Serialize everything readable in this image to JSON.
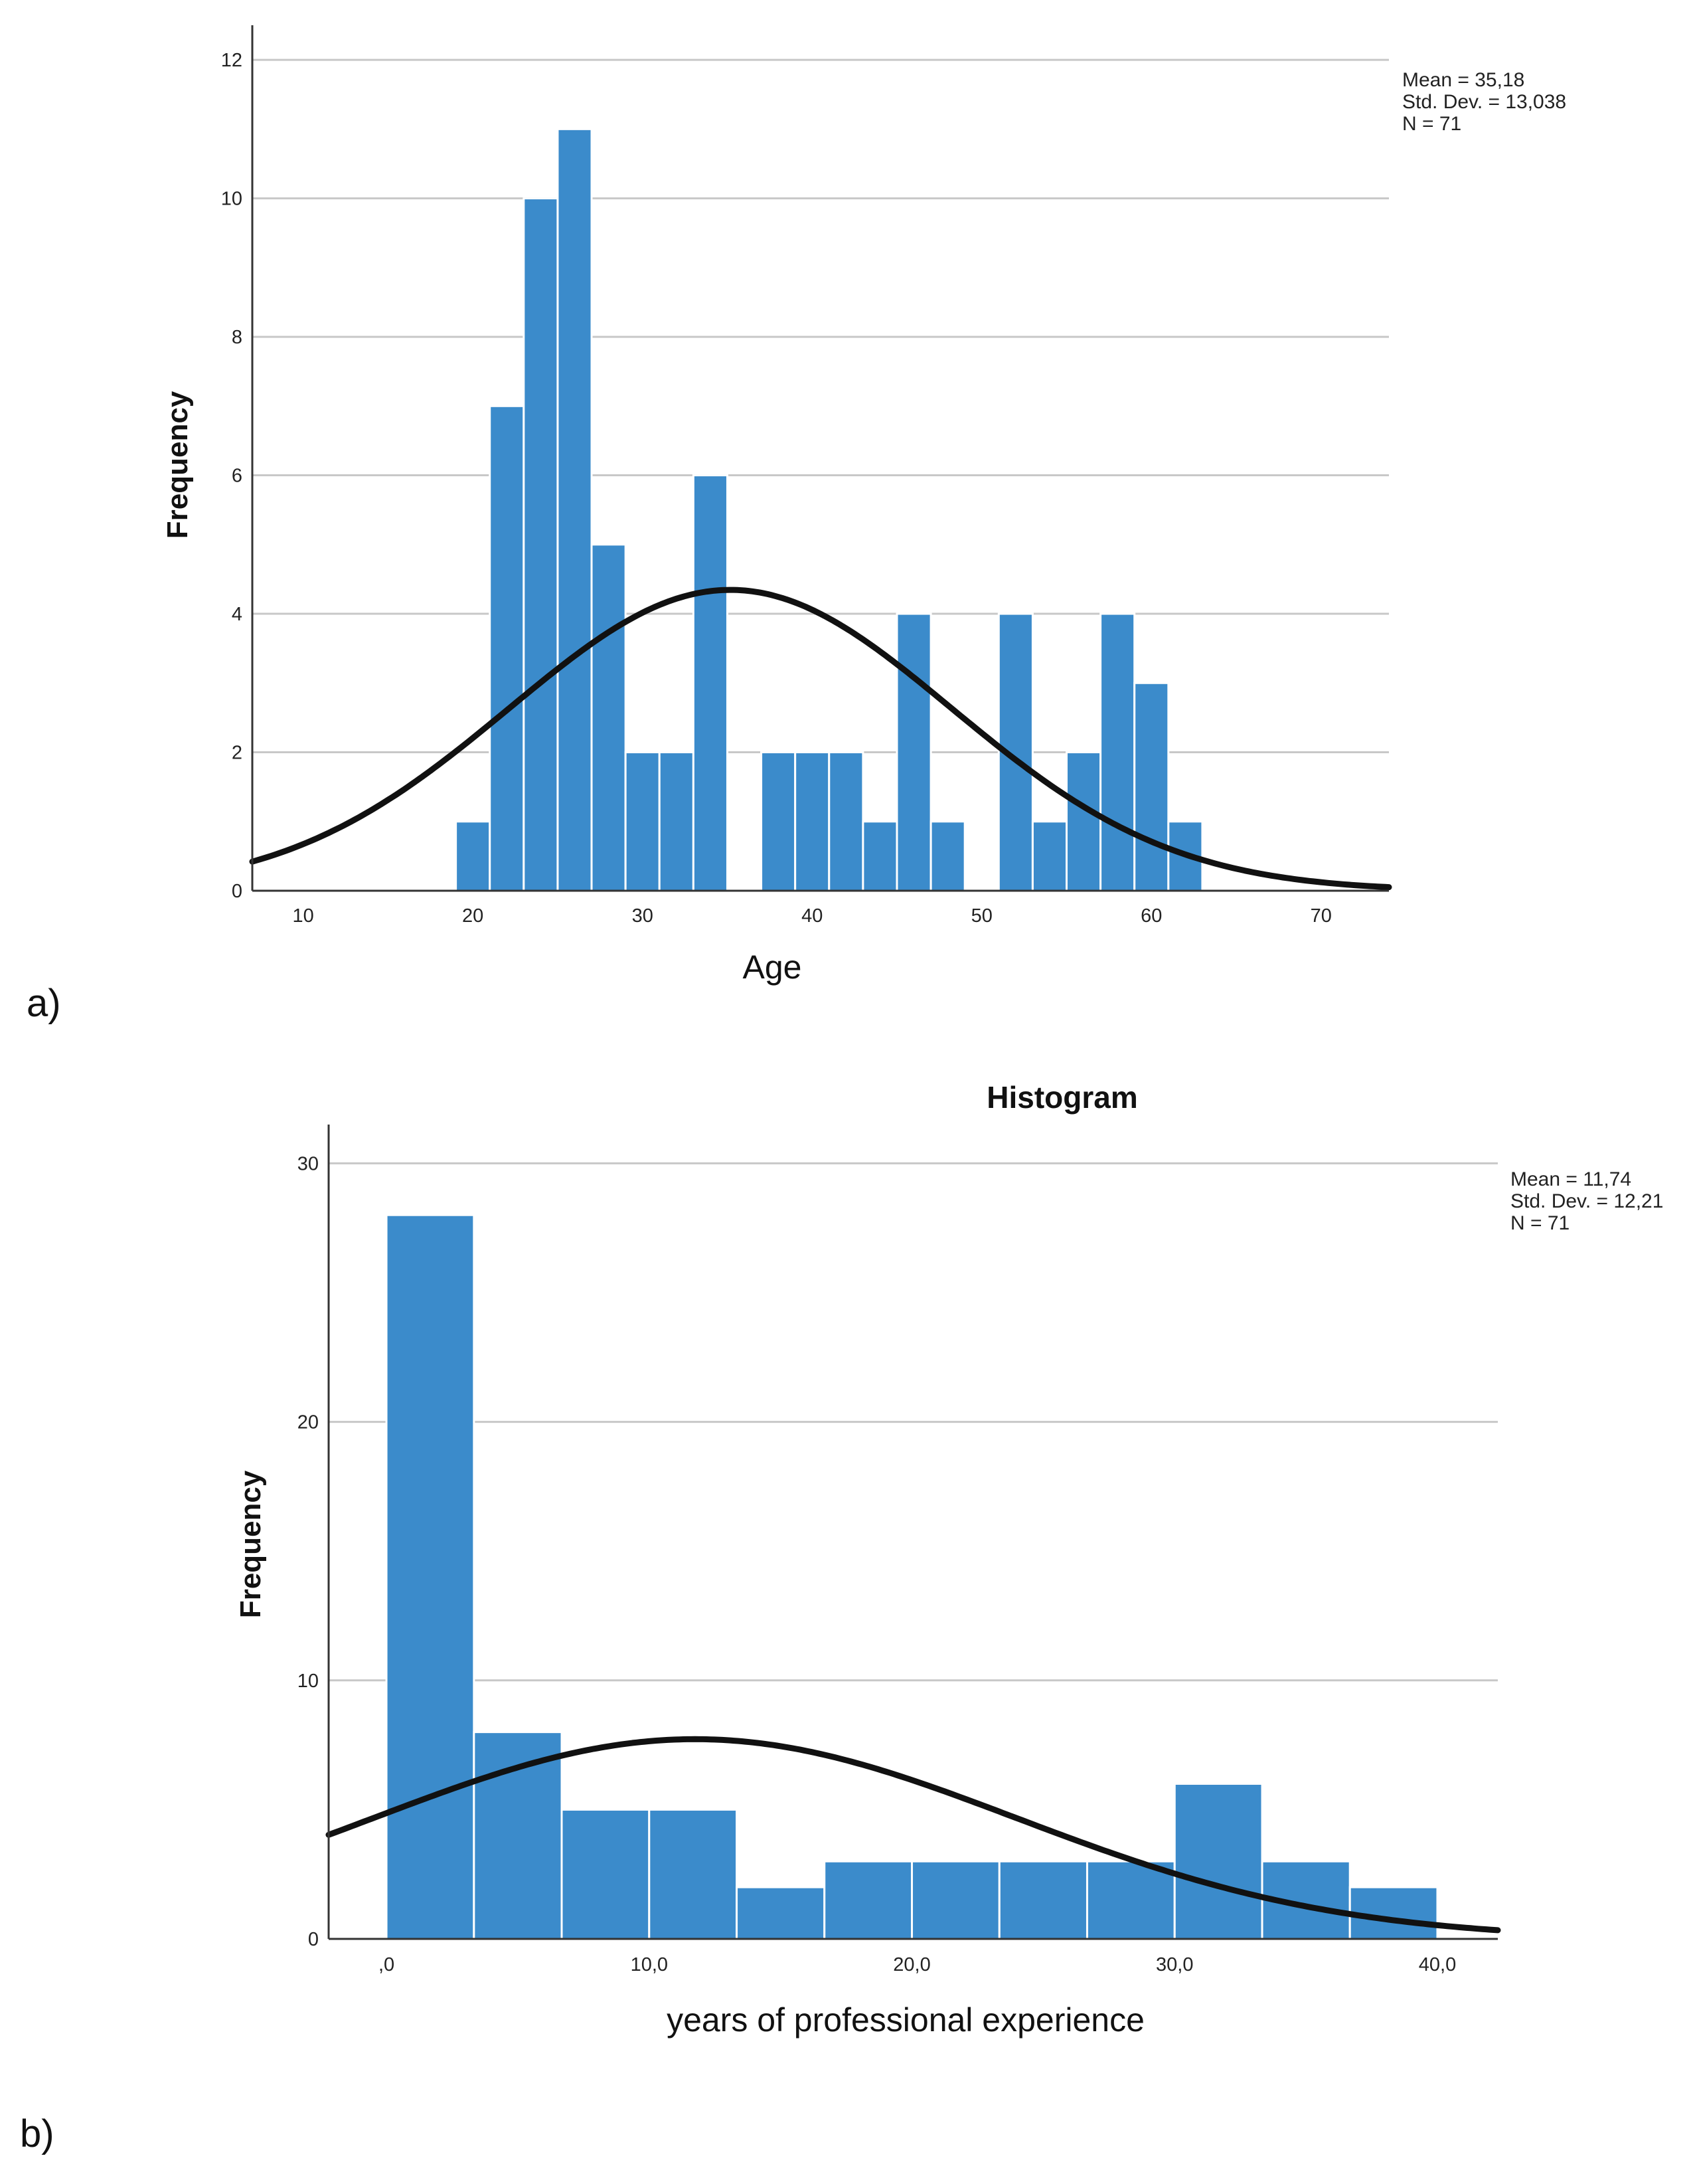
{
  "chart_data": [
    {
      "panel_label": "a)",
      "type": "histogram",
      "title": "",
      "xlabel": "Age",
      "ylabel": "Frequency",
      "xlim": [
        7,
        74
      ],
      "ylim": [
        0,
        12.5
      ],
      "x_ticks": [
        {
          "value": 10,
          "label": "10"
        },
        {
          "value": 20,
          "label": "20"
        },
        {
          "value": 30,
          "label": "30"
        },
        {
          "value": 40,
          "label": "40"
        },
        {
          "value": 50,
          "label": "50"
        },
        {
          "value": 60,
          "label": "60"
        },
        {
          "value": 70,
          "label": "70"
        }
      ],
      "y_ticks": [
        {
          "value": 0,
          "label": "0"
        },
        {
          "value": 2,
          "label": "2"
        },
        {
          "value": 4,
          "label": "4"
        },
        {
          "value": 6,
          "label": "6"
        },
        {
          "value": 8,
          "label": "8"
        },
        {
          "value": 10,
          "label": "10"
        },
        {
          "value": 12,
          "label": "12"
        }
      ],
      "grid": true,
      "bins": [
        {
          "x0": 19,
          "x1": 21,
          "count": 1
        },
        {
          "x0": 21,
          "x1": 23,
          "count": 7
        },
        {
          "x0": 23,
          "x1": 25,
          "count": 10
        },
        {
          "x0": 25,
          "x1": 27,
          "count": 11
        },
        {
          "x0": 27,
          "x1": 29,
          "count": 5
        },
        {
          "x0": 29,
          "x1": 31,
          "count": 2
        },
        {
          "x0": 31,
          "x1": 33,
          "count": 2
        },
        {
          "x0": 33,
          "x1": 35,
          "count": 6
        },
        {
          "x0": 35,
          "x1": 37,
          "count": 0
        },
        {
          "x0": 37,
          "x1": 39,
          "count": 2
        },
        {
          "x0": 39,
          "x1": 41,
          "count": 2
        },
        {
          "x0": 41,
          "x1": 43,
          "count": 2
        },
        {
          "x0": 43,
          "x1": 45,
          "count": 1
        },
        {
          "x0": 45,
          "x1": 47,
          "count": 4
        },
        {
          "x0": 47,
          "x1": 49,
          "count": 1
        },
        {
          "x0": 49,
          "x1": 51,
          "count": 0
        },
        {
          "x0": 51,
          "x1": 53,
          "count": 4
        },
        {
          "x0": 53,
          "x1": 55,
          "count": 1
        },
        {
          "x0": 55,
          "x1": 57,
          "count": 2
        },
        {
          "x0": 57,
          "x1": 59,
          "count": 4
        },
        {
          "x0": 59,
          "x1": 61,
          "count": 3
        },
        {
          "x0": 61,
          "x1": 63,
          "count": 1
        }
      ],
      "normal_curve": {
        "mean": 35.18,
        "sd": 13.038,
        "n": 71,
        "bin_width": 2
      },
      "stats_text": [
        "Mean = 35,18",
        "Std. Dev. = 13,038",
        "N = 71"
      ],
      "bar_color": "#3b8bcb"
    },
    {
      "panel_label": "b)",
      "type": "histogram",
      "title": "Histogram",
      "xlabel": "years of professional experience",
      "ylabel": "Frequency",
      "xlim": [
        -2.2,
        42.3
      ],
      "ylim": [
        0,
        31.5
      ],
      "x_ticks": [
        {
          "value": 0,
          "label": ",0"
        },
        {
          "value": 10,
          "label": "10,0"
        },
        {
          "value": 20,
          "label": "20,0"
        },
        {
          "value": 30,
          "label": "30,0"
        },
        {
          "value": 40,
          "label": "40,0"
        }
      ],
      "y_ticks": [
        {
          "value": 0,
          "label": "0"
        },
        {
          "value": 10,
          "label": "10"
        },
        {
          "value": 20,
          "label": "20"
        },
        {
          "value": 30,
          "label": "30"
        }
      ],
      "grid": true,
      "bins": [
        {
          "x0": 0,
          "x1": 3.33,
          "count": 28
        },
        {
          "x0": 3.33,
          "x1": 6.67,
          "count": 8
        },
        {
          "x0": 6.67,
          "x1": 10,
          "count": 5
        },
        {
          "x0": 10,
          "x1": 13.33,
          "count": 5
        },
        {
          "x0": 13.33,
          "x1": 16.67,
          "count": 2
        },
        {
          "x0": 16.67,
          "x1": 20,
          "count": 3
        },
        {
          "x0": 20,
          "x1": 23.33,
          "count": 3
        },
        {
          "x0": 23.33,
          "x1": 26.67,
          "count": 3
        },
        {
          "x0": 26.67,
          "x1": 30,
          "count": 3
        },
        {
          "x0": 30,
          "x1": 33.33,
          "count": 6
        },
        {
          "x0": 33.33,
          "x1": 36.67,
          "count": 3
        },
        {
          "x0": 36.67,
          "x1": 40,
          "count": 2
        }
      ],
      "normal_curve": {
        "mean": 11.74,
        "sd": 12.21,
        "n": 71,
        "bin_width": 3.33
      },
      "stats_text": [
        "Mean = 11,74",
        "Std. Dev. = 12,21",
        "N = 71"
      ],
      "bar_color": "#3b8bcb"
    }
  ]
}
